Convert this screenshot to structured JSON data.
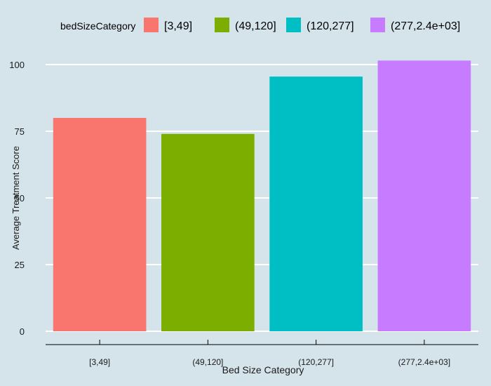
{
  "chart_data": {
    "type": "bar",
    "categories": [
      "[3,49]",
      "(49,120]",
      "(120,277]",
      "(277,2.4e+03]"
    ],
    "values": [
      80,
      74,
      95.5,
      101.5
    ],
    "colors": [
      "#f8766d",
      "#7cae00",
      "#00bfc4",
      "#c77cff"
    ],
    "xlabel": "Bed Size Category",
    "ylabel": "Average Treatment Score",
    "ylim": [
      0,
      105
    ],
    "yticks": [
      0,
      25,
      50,
      75,
      100
    ],
    "legend": {
      "title": "bedSizeCategory",
      "position": "top",
      "entries": [
        "[3,49]",
        "(49,120]",
        "(120,277]",
        "(277,2.4e+03]"
      ]
    },
    "grid": true,
    "background_color": "#d5e3ea",
    "gridline_color": "#ffffff"
  }
}
